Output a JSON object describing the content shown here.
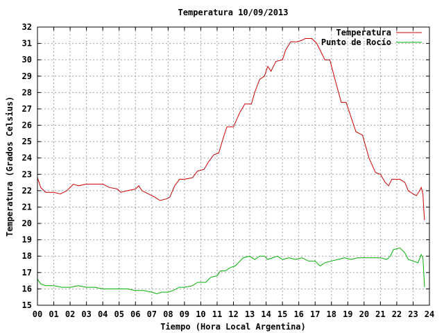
{
  "chart_data": {
    "type": "line",
    "title": "Temperatura 10/09/2013",
    "xlabel": "Tiempo (Hora Local Argentina)",
    "ylabel": "Temperatura (Grados Celsius)",
    "xlim": [
      0,
      24
    ],
    "ylim": [
      15,
      32
    ],
    "x_ticks": [
      "00",
      "01",
      "02",
      "03",
      "04",
      "05",
      "06",
      "07",
      "08",
      "09",
      "10",
      "11",
      "12",
      "13",
      "14",
      "15",
      "16",
      "17",
      "18",
      "19",
      "20",
      "21",
      "22",
      "23",
      "24"
    ],
    "y_ticks": [
      15,
      16,
      17,
      18,
      19,
      20,
      21,
      22,
      23,
      24,
      25,
      26,
      27,
      28,
      29,
      30,
      31,
      32
    ],
    "grid": true,
    "legend_position": "top-right",
    "series": [
      {
        "name": "Temperatura",
        "color": "#cc0000",
        "points": [
          [
            0.0,
            22.8
          ],
          [
            0.2,
            22.2
          ],
          [
            0.5,
            21.9
          ],
          [
            1.0,
            21.9
          ],
          [
            1.4,
            21.8
          ],
          [
            1.8,
            22.0
          ],
          [
            2.2,
            22.4
          ],
          [
            2.5,
            22.3
          ],
          [
            3.0,
            22.4
          ],
          [
            3.4,
            22.4
          ],
          [
            4.0,
            22.4
          ],
          [
            4.4,
            22.2
          ],
          [
            4.9,
            22.1
          ],
          [
            5.1,
            21.9
          ],
          [
            5.5,
            22.0
          ],
          [
            6.0,
            22.1
          ],
          [
            6.2,
            22.3
          ],
          [
            6.4,
            22.0
          ],
          [
            6.8,
            21.8
          ],
          [
            7.2,
            21.6
          ],
          [
            7.5,
            21.4
          ],
          [
            7.9,
            21.5
          ],
          [
            8.1,
            21.6
          ],
          [
            8.4,
            22.3
          ],
          [
            8.7,
            22.7
          ],
          [
            9.0,
            22.7
          ],
          [
            9.5,
            22.8
          ],
          [
            9.8,
            23.2
          ],
          [
            10.2,
            23.3
          ],
          [
            10.5,
            23.8
          ],
          [
            10.8,
            24.2
          ],
          [
            11.1,
            24.3
          ],
          [
            11.4,
            25.3
          ],
          [
            11.6,
            25.9
          ],
          [
            12.0,
            25.9
          ],
          [
            12.4,
            26.8
          ],
          [
            12.7,
            27.3
          ],
          [
            13.1,
            27.3
          ],
          [
            13.3,
            28.0
          ],
          [
            13.6,
            28.8
          ],
          [
            13.9,
            29.0
          ],
          [
            14.1,
            29.6
          ],
          [
            14.3,
            29.3
          ],
          [
            14.6,
            29.9
          ],
          [
            15.0,
            30.0
          ],
          [
            15.2,
            30.6
          ],
          [
            15.5,
            31.1
          ],
          [
            15.9,
            31.1
          ],
          [
            16.2,
            31.2
          ],
          [
            16.4,
            31.3
          ],
          [
            16.8,
            31.3
          ],
          [
            17.1,
            31.0
          ],
          [
            17.4,
            30.4
          ],
          [
            17.6,
            30.0
          ],
          [
            17.9,
            30.0
          ],
          [
            18.3,
            28.5
          ],
          [
            18.6,
            27.4
          ],
          [
            18.9,
            27.4
          ],
          [
            19.2,
            26.5
          ],
          [
            19.5,
            25.6
          ],
          [
            19.9,
            25.4
          ],
          [
            20.3,
            24.0
          ],
          [
            20.7,
            23.1
          ],
          [
            21.0,
            23.0
          ],
          [
            21.3,
            22.5
          ],
          [
            21.5,
            22.3
          ],
          [
            21.7,
            22.7
          ],
          [
            22.2,
            22.7
          ],
          [
            22.5,
            22.5
          ],
          [
            22.7,
            22.0
          ],
          [
            23.0,
            21.8
          ],
          [
            23.2,
            21.7
          ],
          [
            23.4,
            22.0
          ],
          [
            23.5,
            22.2
          ],
          [
            23.6,
            21.8
          ],
          [
            23.65,
            20.9
          ],
          [
            23.7,
            20.2
          ]
        ]
      },
      {
        "name": "Punto de Rocío",
        "color": "#00b000",
        "points": [
          [
            0.0,
            16.6
          ],
          [
            0.2,
            16.3
          ],
          [
            0.5,
            16.2
          ],
          [
            1.0,
            16.2
          ],
          [
            1.5,
            16.1
          ],
          [
            2.0,
            16.1
          ],
          [
            2.5,
            16.2
          ],
          [
            3.0,
            16.1
          ],
          [
            3.5,
            16.1
          ],
          [
            4.0,
            16.0
          ],
          [
            4.5,
            16.0
          ],
          [
            5.0,
            16.0
          ],
          [
            5.5,
            16.0
          ],
          [
            6.0,
            15.9
          ],
          [
            6.5,
            15.9
          ],
          [
            7.0,
            15.8
          ],
          [
            7.3,
            15.7
          ],
          [
            7.6,
            15.8
          ],
          [
            8.0,
            15.8
          ],
          [
            8.3,
            15.9
          ],
          [
            8.7,
            16.1
          ],
          [
            9.0,
            16.1
          ],
          [
            9.5,
            16.2
          ],
          [
            9.8,
            16.4
          ],
          [
            10.3,
            16.4
          ],
          [
            10.6,
            16.7
          ],
          [
            11.0,
            16.8
          ],
          [
            11.2,
            17.1
          ],
          [
            11.5,
            17.1
          ],
          [
            11.8,
            17.3
          ],
          [
            12.1,
            17.4
          ],
          [
            12.3,
            17.6
          ],
          [
            12.6,
            17.9
          ],
          [
            13.0,
            18.0
          ],
          [
            13.3,
            17.8
          ],
          [
            13.6,
            18.0
          ],
          [
            13.9,
            18.0
          ],
          [
            14.1,
            17.8
          ],
          [
            14.4,
            17.9
          ],
          [
            14.7,
            18.0
          ],
          [
            15.0,
            17.8
          ],
          [
            15.4,
            17.9
          ],
          [
            15.8,
            17.8
          ],
          [
            16.2,
            17.9
          ],
          [
            16.6,
            17.7
          ],
          [
            17.0,
            17.7
          ],
          [
            17.3,
            17.4
          ],
          [
            17.6,
            17.6
          ],
          [
            18.0,
            17.7
          ],
          [
            18.4,
            17.8
          ],
          [
            18.8,
            17.9
          ],
          [
            19.2,
            17.8
          ],
          [
            19.6,
            17.9
          ],
          [
            20.0,
            17.9
          ],
          [
            20.5,
            17.9
          ],
          [
            21.0,
            17.9
          ],
          [
            21.4,
            17.8
          ],
          [
            21.6,
            18.0
          ],
          [
            21.8,
            18.4
          ],
          [
            22.2,
            18.5
          ],
          [
            22.5,
            18.2
          ],
          [
            22.7,
            17.8
          ],
          [
            23.0,
            17.7
          ],
          [
            23.3,
            17.6
          ],
          [
            23.5,
            18.1
          ],
          [
            23.6,
            17.9
          ],
          [
            23.65,
            17.0
          ],
          [
            23.7,
            16.1
          ]
        ]
      }
    ]
  }
}
